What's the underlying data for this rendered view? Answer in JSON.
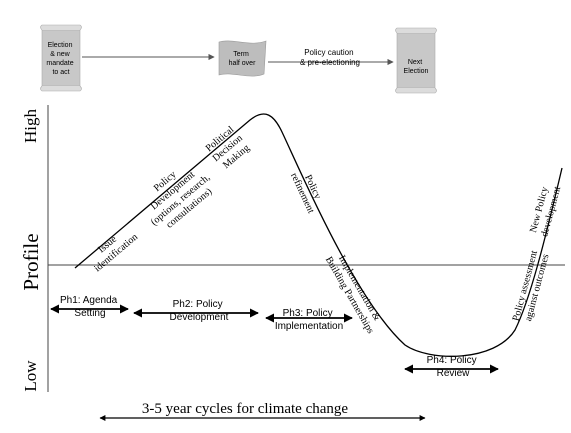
{
  "timeline": {
    "election": [
      "Election",
      "& new",
      "mandate",
      "to act"
    ],
    "term_half": [
      "Term",
      "half over"
    ],
    "policy_caution": [
      "Policy caution",
      "& pre-electioning"
    ],
    "next_election": [
      "Next",
      "Election"
    ]
  },
  "axis": {
    "high": "High",
    "profile": "Profile",
    "low": "Low"
  },
  "curve_labels": {
    "issue": [
      "Issue",
      "identification"
    ],
    "policy_dev": [
      "Policy",
      "Development",
      "(options, research,",
      "consultations)"
    ],
    "political": [
      "Political",
      "Decision",
      "Making"
    ],
    "refinement": [
      "Policy",
      "refinement"
    ],
    "implementation": [
      "Implementation &",
      "Building Partnerships"
    ],
    "assessment": [
      "Policy assessment",
      "against outcomes"
    ],
    "new_policy": [
      "New Policy",
      "development"
    ]
  },
  "phases": {
    "ph1": [
      "Ph1: Agenda",
      "Setting"
    ],
    "ph2": [
      "Ph2: Policy",
      "Development"
    ],
    "ph3": [
      "Ph3: Policy",
      "Implementation"
    ],
    "ph4": [
      "Ph4: Policy",
      "Review"
    ]
  },
  "cycle_label": "3-5 year cycles for climate change"
}
